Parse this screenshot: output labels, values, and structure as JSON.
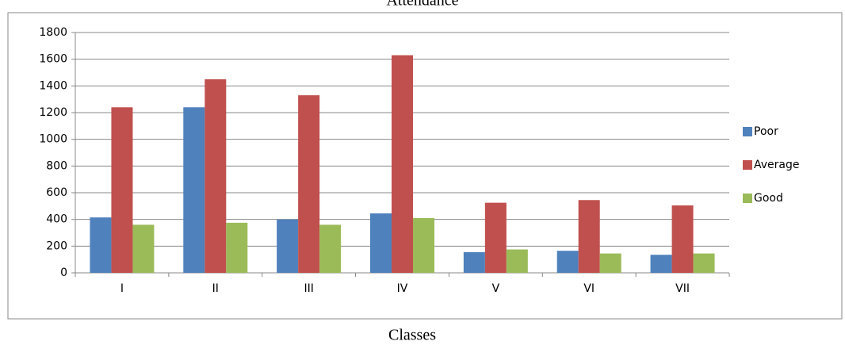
{
  "chart_data": {
    "type": "bar",
    "title": "Attendance",
    "x_label": "Classes",
    "categories": [
      "I",
      "II",
      "III",
      "IV",
      "V",
      "VI",
      "VII"
    ],
    "series": [
      {
        "name": "Poor",
        "color": "#4f81bd",
        "values": [
          415,
          1240,
          400,
          445,
          155,
          165,
          135
        ]
      },
      {
        "name": "Average",
        "color": "#c0504d",
        "values": [
          1240,
          1450,
          1330,
          1630,
          525,
          545,
          505
        ]
      },
      {
        "name": "Good",
        "color": "#9bbb59",
        "values": [
          360,
          375,
          360,
          410,
          175,
          145,
          145
        ]
      }
    ],
    "ylim": [
      0,
      1800
    ],
    "yticks": [
      0,
      200,
      400,
      600,
      800,
      1000,
      1200,
      1400,
      1600,
      1800
    ],
    "grid": true,
    "legend": "right"
  }
}
